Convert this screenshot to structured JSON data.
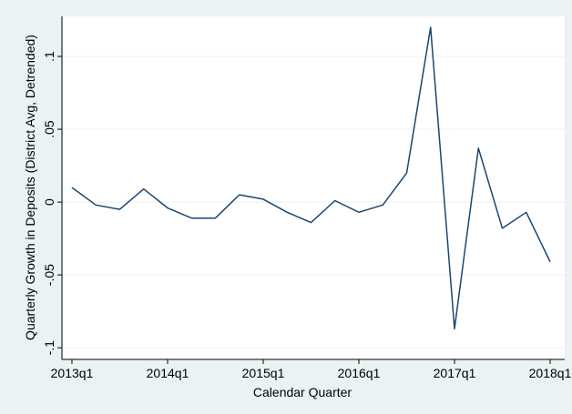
{
  "chart_data": {
    "type": "line",
    "x_label": "Calendar Quarter",
    "y_label": "Quarterly Growth in Deposits (District Avg, Detrended)",
    "categories": [
      "2013q1",
      null,
      null,
      null,
      "2014q1",
      null,
      null,
      null,
      "2015q1",
      null,
      null,
      null,
      "2016q1",
      null,
      null,
      null,
      "2017q1",
      null,
      null,
      null,
      "2018q1"
    ],
    "values": [
      0.01,
      -0.002,
      -0.005,
      0.009,
      -0.004,
      -0.011,
      -0.011,
      0.005,
      0.002,
      -0.007,
      -0.014,
      0.001,
      -0.007,
      -0.002,
      0.02,
      0.12,
      -0.087,
      0.037,
      -0.018,
      -0.007,
      -0.041
    ],
    "color": "#1a476f",
    "ylim": [
      -0.108,
      0.1275
    ],
    "yticks": [
      {
        "value": -0.1,
        "label": "-.1"
      },
      {
        "value": -0.05,
        "label": "-.05"
      },
      0,
      {
        "value": 0.05,
        "label": ".05"
      },
      {
        "value": 0.1,
        "label": ".1"
      }
    ],
    "grid": true
  }
}
